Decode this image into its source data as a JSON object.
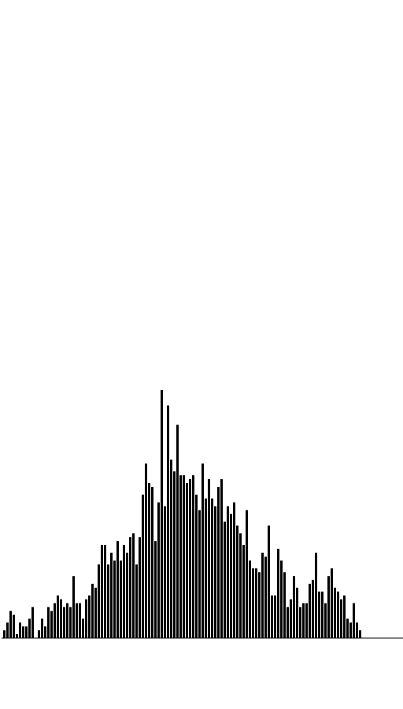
{
  "chart_data": {
    "type": "bar",
    "title": "",
    "xlabel": "",
    "ylabel": "",
    "grid": false,
    "ylim": [
      0,
      65
    ],
    "bar_color": "#000000",
    "axis_color": "#000000",
    "values": [
      2,
      4,
      7,
      6,
      1,
      4,
      3,
      3,
      5,
      8,
      0,
      2,
      5,
      3,
      8,
      7,
      9,
      11,
      10,
      8,
      9,
      8,
      16,
      9,
      9,
      5,
      10,
      11,
      14,
      13,
      19,
      24,
      24,
      19,
      22,
      20,
      25,
      20,
      24,
      22,
      26,
      27,
      19,
      26,
      37,
      45,
      40,
      39,
      25,
      35,
      64,
      34,
      60,
      46,
      43,
      55,
      42,
      42,
      40,
      41,
      42,
      37,
      33,
      45,
      36,
      41,
      36,
      34,
      39,
      41,
      30,
      34,
      32,
      35,
      29,
      27,
      24,
      33,
      20,
      18,
      18,
      17,
      22,
      21,
      29,
      11,
      11,
      23,
      20,
      17,
      8,
      10,
      16,
      13,
      8,
      9,
      9,
      14,
      15,
      22,
      12,
      12,
      9,
      16,
      18,
      13,
      12,
      10,
      11,
      5,
      4,
      9,
      4,
      2
    ]
  }
}
